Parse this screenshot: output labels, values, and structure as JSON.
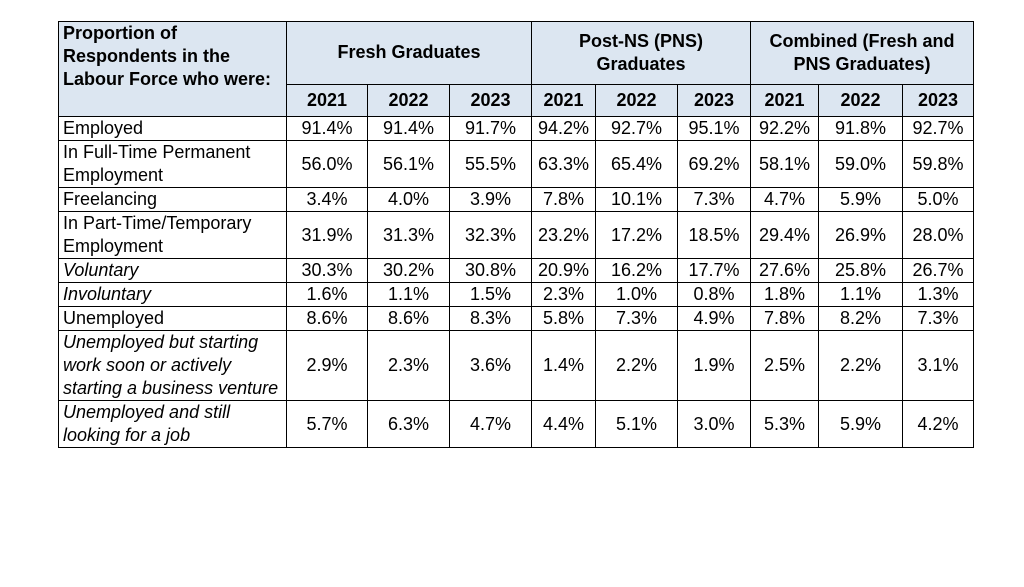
{
  "header": {
    "title": "Proportion of Respondents in the Labour Force who were:",
    "groups": [
      "Fresh Graduates",
      "Post-NS (PNS) Graduates",
      "Combined (Fresh and PNS Graduates)"
    ],
    "years": [
      "2021",
      "2022",
      "2023",
      "2021",
      "2022",
      "2023",
      "2021",
      "2022",
      "2023"
    ]
  },
  "rows": [
    {
      "label": "Employed",
      "values": [
        "91.4%",
        "91.4%",
        "91.7%",
        "94.2%",
        "92.7%",
        "95.1%",
        "92.2%",
        "91.8%",
        "92.7%"
      ]
    },
    {
      "label": "In Full-Time Permanent Employment",
      "values": [
        "56.0%",
        "56.1%",
        "55.5%",
        "63.3%",
        "65.4%",
        "69.2%",
        "58.1%",
        "59.0%",
        "59.8%"
      ]
    },
    {
      "label": "Freelancing",
      "values": [
        "3.4%",
        "4.0%",
        "3.9%",
        "7.8%",
        "10.1%",
        "7.3%",
        "4.7%",
        "5.9%",
        "5.0%"
      ]
    },
    {
      "label": "In Part-Time/Temporary Employment",
      "values": [
        "31.9%",
        "31.3%",
        "32.3%",
        "23.2%",
        "17.2%",
        "18.5%",
        "29.4%",
        "26.9%",
        "28.0%"
      ]
    },
    {
      "label": "Voluntary",
      "values": [
        "30.3%",
        "30.2%",
        "30.8%",
        "20.9%",
        "16.2%",
        "17.7%",
        "27.6%",
        "25.8%",
        "26.7%"
      ]
    },
    {
      "label": "Involuntary",
      "values": [
        "1.6%",
        "1.1%",
        "1.5%",
        "2.3%",
        "1.0%",
        "0.8%",
        "1.8%",
        "1.1%",
        "1.3%"
      ]
    },
    {
      "label": "Unemployed",
      "values": [
        "8.6%",
        "8.6%",
        "8.3%",
        "5.8%",
        "7.3%",
        "4.9%",
        "7.8%",
        "8.2%",
        "7.3%"
      ]
    },
    {
      "label": "Unemployed but starting work soon or actively starting a business venture",
      "values": [
        "2.9%",
        "2.3%",
        "3.6%",
        "1.4%",
        "2.2%",
        "1.9%",
        "2.5%",
        "2.2%",
        "3.1%"
      ]
    },
    {
      "label": "Unemployed and still looking for a job",
      "values": [
        "5.7%",
        "6.3%",
        "4.7%",
        "4.4%",
        "5.1%",
        "3.0%",
        "5.3%",
        "5.9%",
        "4.2%"
      ]
    }
  ]
}
